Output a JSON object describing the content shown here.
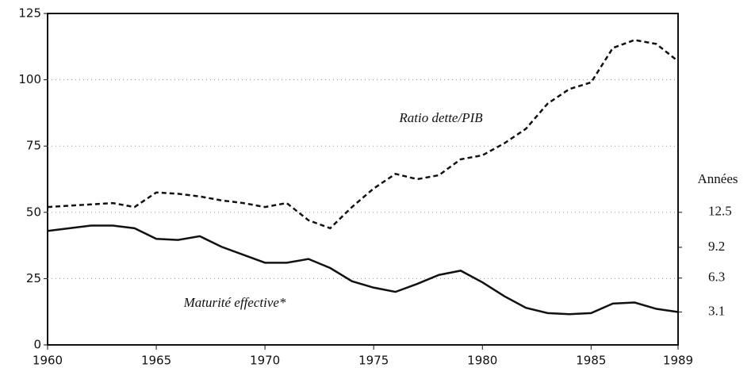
{
  "chart_data": {
    "type": "line",
    "y2label": "Années",
    "x": [
      1960,
      1961,
      1962,
      1963,
      1964,
      1965,
      1966,
      1967,
      1968,
      1969,
      1970,
      1971,
      1972,
      1973,
      1974,
      1975,
      1976,
      1977,
      1978,
      1979,
      1980,
      1981,
      1982,
      1983,
      1984,
      1985,
      1986,
      1987,
      1988,
      1989
    ],
    "xlim": [
      1960,
      1989
    ],
    "xticks": [
      1960,
      1965,
      1970,
      1975,
      1980,
      1985,
      1989
    ],
    "ylim": [
      0,
      125
    ],
    "yticks": [
      0,
      25,
      50,
      75,
      100,
      125
    ],
    "y2lim": [
      0,
      31.25
    ],
    "y2ticks": [
      3.1,
      6.3,
      9.2,
      12.5
    ],
    "grid": true,
    "series": [
      {
        "name": "Ratio dette/PIB",
        "color": "#111111",
        "dash": true,
        "values": [
          52,
          52.5,
          53,
          53.5,
          52,
          57.5,
          57,
          56,
          54.5,
          53.5,
          52,
          53.5,
          47,
          44,
          52,
          59,
          64.5,
          62.5,
          64,
          70,
          71.5,
          76,
          81.5,
          91,
          96.5,
          99,
          112,
          115,
          113.5,
          107
        ]
      },
      {
        "name": "Maturité effective*",
        "color": "#111111",
        "dash": false,
        "axis": "y2",
        "values": [
          10.75,
          11,
          11.25,
          11.25,
          11,
          10,
          9.9,
          10.25,
          9.25,
          8.5,
          7.75,
          7.75,
          8.1,
          7.25,
          6,
          5.4,
          5,
          5.75,
          6.6,
          7,
          5.9,
          4.6,
          3.5,
          3,
          2.9,
          3,
          3.9,
          4,
          3.4,
          3.1
        ]
      }
    ]
  }
}
